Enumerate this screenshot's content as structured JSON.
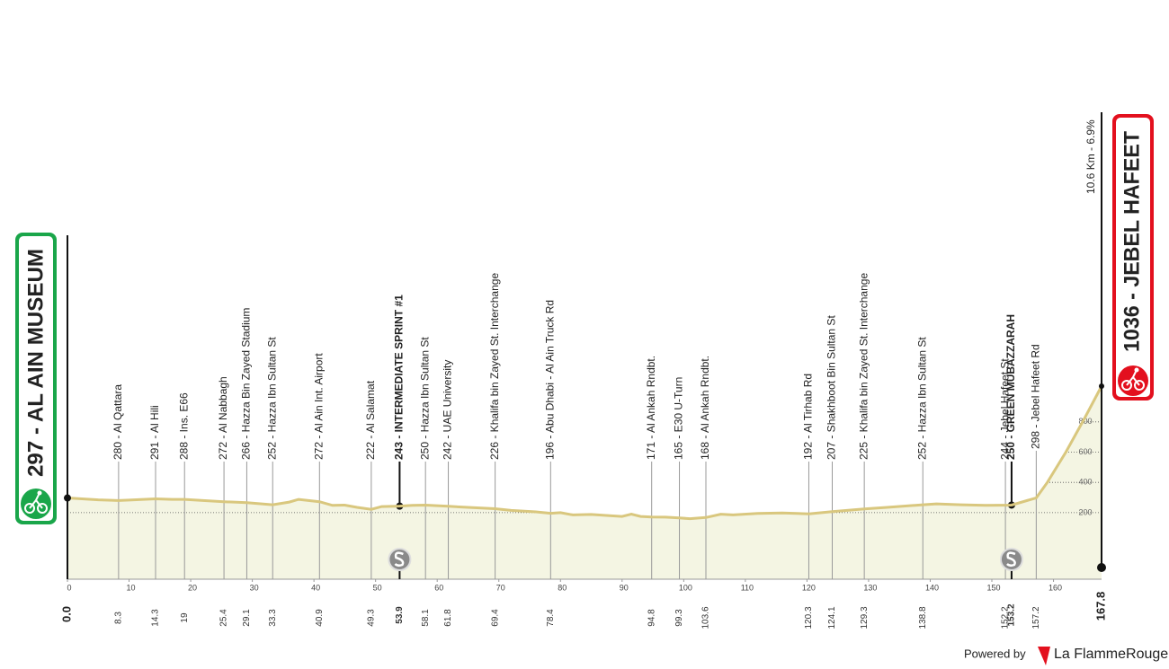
{
  "chart_data": {
    "type": "area",
    "color": "#d9c77e",
    "fill": "#f4f5e3",
    "x": [
      0,
      5,
      8.3,
      10,
      14.3,
      17,
      19,
      22,
      25.4,
      29.1,
      33.3,
      36,
      37.5,
      40.9,
      43,
      45,
      47,
      49.3,
      51,
      53.9,
      56,
      58.1,
      61.8,
      65,
      69.4,
      72,
      76,
      78.4,
      80,
      82,
      85,
      88,
      90,
      91.5,
      93,
      94.8,
      97,
      99.3,
      101,
      103.6,
      106,
      108,
      112,
      116,
      120.3,
      124.1,
      129.3,
      133,
      138.8,
      141,
      145,
      149,
      153.2,
      157.2,
      159,
      162,
      165,
      167.8
    ],
    "values": [
      297,
      285,
      280,
      283,
      291,
      288,
      288,
      280,
      272,
      266,
      252,
      270,
      288,
      272,
      248,
      250,
      235,
      222,
      240,
      243,
      248,
      250,
      242,
      235,
      226,
      215,
      205,
      196,
      200,
      185,
      188,
      180,
      175,
      190,
      175,
      171,
      170,
      165,
      160,
      168,
      190,
      185,
      195,
      198,
      192,
      207,
      225,
      235,
      252,
      258,
      252,
      248,
      250,
      298,
      400,
      600,
      820,
      1036
    ],
    "xlim": [
      0,
      167.8
    ],
    "ylim": [
      -240,
      1060
    ],
    "xticks": [
      0,
      10,
      20,
      30,
      40,
      50,
      60,
      70,
      80,
      90,
      100,
      110,
      120,
      130,
      140,
      150,
      160
    ],
    "yticks": [
      200,
      400,
      600,
      800
    ],
    "grid": true,
    "start": {
      "km": {
        "value": 0,
        "label": "0.0"
      },
      "label": "297 - AL AIN MUSEUM"
    },
    "finish": {
      "km": 167.8,
      "label": "1036 - JEBEL HAFEET",
      "climb_label": "10.6 Km - 6.9%"
    },
    "waypoints": [
      {
        "km": 8.3,
        "label": "280 - Al Qattara"
      },
      {
        "km": 14.3,
        "label": "291 - Al Hili"
      },
      {
        "km": 19.0,
        "label": "288 - Ins. E66"
      },
      {
        "km": 25.4,
        "label": "272 - Al Nabbagh"
      },
      {
        "km": 29.1,
        "label": "266 - Hazza Bin Zayed Stadium"
      },
      {
        "km": 33.3,
        "label": "252 - Hazza Ibn Sultan St"
      },
      {
        "km": 40.9,
        "label": "272 - Al Ain Int. Airport"
      },
      {
        "km": 49.3,
        "label": "222 - Al Salamat"
      },
      {
        "km": 53.9,
        "label": "243 - INTERMEDIATE SPRINT #1",
        "sprint": true
      },
      {
        "km": 58.1,
        "label": "250 - Hazza Ibn Sultan St"
      },
      {
        "km": 61.8,
        "label": "242 - UAE University"
      },
      {
        "km": 69.4,
        "label": "226 - Khalifa bin Zayed St. Interchange"
      },
      {
        "km": 78.4,
        "label": "196 - Abu Dhabi - Al Ain Truck Rd"
      },
      {
        "km": 94.8,
        "label": "171 - Al Ankah Rndbt."
      },
      {
        "km": 99.3,
        "label": "165 - E30 U-Turn"
      },
      {
        "km": 103.6,
        "label": "168 - Al Ankah Rndbt."
      },
      {
        "km": 120.3,
        "label": "192 - Al Tirhab Rd"
      },
      {
        "km": 124.1,
        "label": "207 - Shakhboot Bin Sultan St"
      },
      {
        "km": 129.3,
        "label": "225 - Khalifa bin Zayed St. Interchange"
      },
      {
        "km": 138.8,
        "label": "252 - Hazza Ibn Sultan St"
      },
      {
        "km": 152.2,
        "label": "244 - Jebel Hafeet St"
      },
      {
        "km": 153.2,
        "label": "250 - GREEN MUBAZZARAH",
        "sprint": true
      },
      {
        "km": 157.2,
        "label": "298 - Jebel Hafeet Rd"
      }
    ],
    "footer": {
      "powered_by": "Powered by",
      "brand": "La FlammeRouge"
    }
  }
}
